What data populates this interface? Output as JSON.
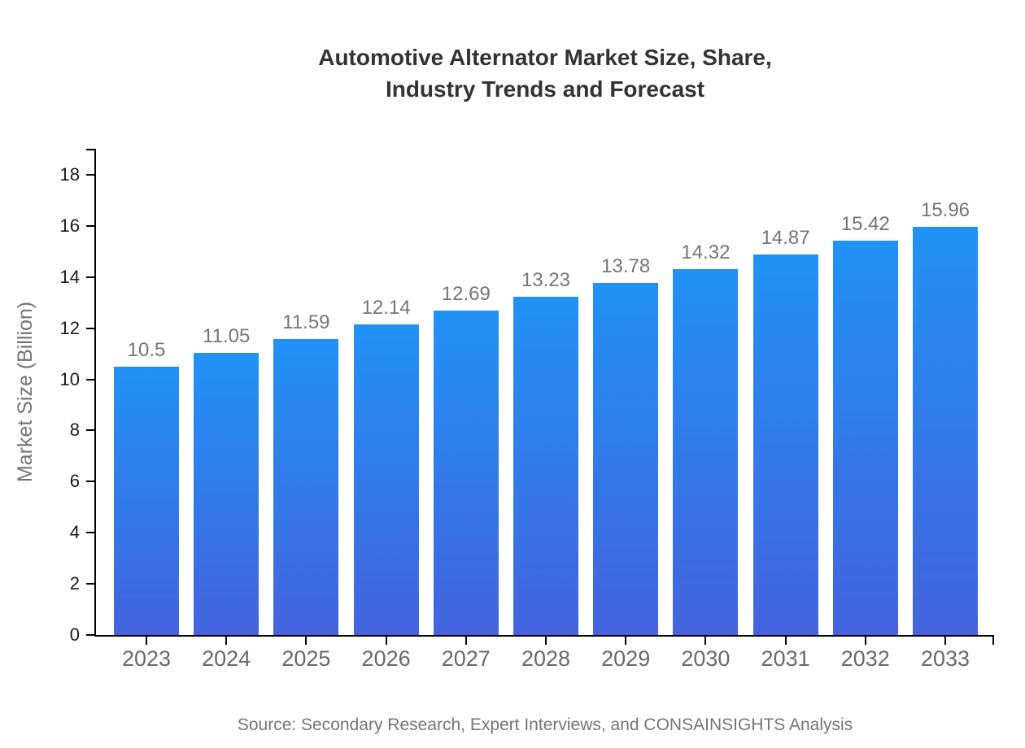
{
  "chart_data": {
    "type": "bar",
    "title": "Automotive Alternator Market Size, Share, Industry Trends and Forecast",
    "title_lines": [
      "Automotive Alternator Market Size, Share,",
      "Industry Trends and Forecast"
    ],
    "xlabel": "",
    "ylabel": "Market Size (Billion)",
    "categories": [
      "2023",
      "2024",
      "2025",
      "2026",
      "2027",
      "2028",
      "2029",
      "2030",
      "2031",
      "2032",
      "2033"
    ],
    "values": [
      10.5,
      11.05,
      11.59,
      12.14,
      12.69,
      13.23,
      13.78,
      14.32,
      14.87,
      15.42,
      15.96
    ],
    "value_labels": [
      "10.5",
      "11.05",
      "11.59",
      "12.14",
      "12.69",
      "13.23",
      "13.78",
      "14.32",
      "14.87",
      "15.42",
      "15.96"
    ],
    "yticks": [
      0,
      2,
      4,
      6,
      8,
      10,
      12,
      14,
      16,
      18
    ],
    "ylim": [
      0,
      19
    ],
    "grid": false,
    "legend": null,
    "bar_color_top": "#2192F5",
    "bar_color_bottom": "#4463DD",
    "axis_color": "#000000"
  },
  "source_note": "Source: Secondary Research, Expert Interviews, and CONSAINSIGHTS Analysis"
}
